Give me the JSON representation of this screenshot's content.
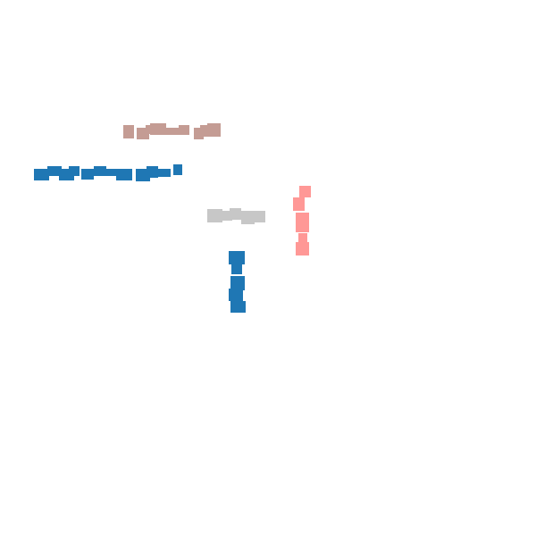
{
  "fragments": [
    {
      "name": "pale-brown-horizontal-fragment",
      "color": "#c49c94",
      "shape": "horizontal-square-chain"
    },
    {
      "name": "blue-horizontal-fragment",
      "color": "#1f77b4",
      "shape": "horizontal-square-chain"
    },
    {
      "name": "light-gray-horizontal-fragment",
      "color": "#c7c7c7",
      "shape": "horizontal-square-chain"
    },
    {
      "name": "pink-vertical-fragment",
      "color": "#ff9896",
      "shape": "vertical-square-chain"
    },
    {
      "name": "blue-vertical-fragment",
      "color": "#1f77b4",
      "shape": "vertical-square-chain"
    }
  ]
}
